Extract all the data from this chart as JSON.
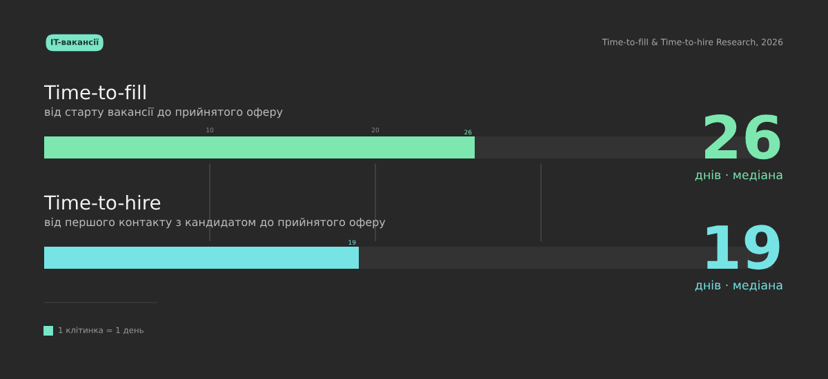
{
  "chart_data": {
    "type": "bar",
    "orientation": "horizontal",
    "stacked": true,
    "title": "IT-вакансії",
    "categories": [
      "Time-to-fill",
      "Time-to-hire"
    ],
    "series": [
      {
        "colors": [
          "#7ce8b0",
          "#76e4e4"
        ],
        "values": [
          26,
          19
        ],
        "value_labels": [
          "26",
          "19"
        ]
      },
      {
        "color": "#333333",
        "values": [
          18,
          25
        ]
      }
    ],
    "xlim": [
      0,
      44
    ],
    "xticks": [
      10,
      20
    ],
    "ref_lines": [
      {
        "axis": "x",
        "value": 10,
        "color": "#4a4a4a"
      },
      {
        "axis": "x",
        "value": 20,
        "color": "#4a4a4a"
      },
      {
        "axis": "x",
        "value": 30,
        "color": "#4a4a4a"
      }
    ],
    "annotations": [
      "від старту вакансії до прийнятого оферу",
      "від першого контакту з кандидатом до прийнятого оферу",
      "днів · медіана",
      "днів · медіана",
      "Time-to-fill & Time-to-hire Research, 2026",
      "1 клітинка = 1 день"
    ]
  }
}
